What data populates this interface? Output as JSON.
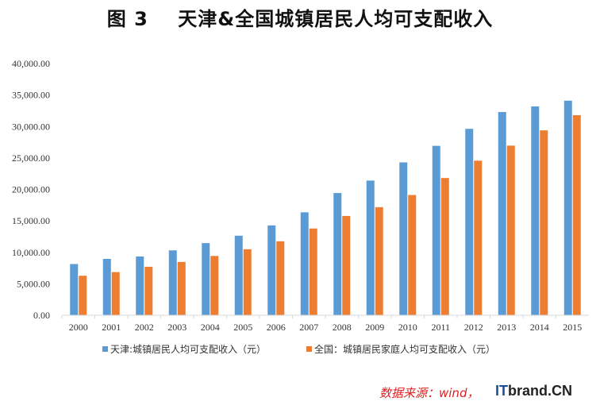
{
  "title": "图 3    天津&全国城镇居民人均可支配收入",
  "source_note": "数据来源：wind，",
  "watermark": {
    "prefix": "IT",
    "rest": "brand.CN"
  },
  "colors": {
    "series1": "#5b9bd5",
    "series2": "#ed7d31",
    "axis": "#d9d9d9",
    "text": "#333333"
  },
  "chart_data": {
    "type": "bar",
    "categories": [
      "2000",
      "2001",
      "2002",
      "2003",
      "2004",
      "2005",
      "2006",
      "2007",
      "2008",
      "2009",
      "2010",
      "2011",
      "2012",
      "2013",
      "2014",
      "2015"
    ],
    "series": [
      {
        "name": "天津:城镇居民人均可支配收入（元）",
        "values": [
          8141,
          8959,
          9338,
          10313,
          11467,
          12639,
          14283,
          16357,
          19423,
          21402,
          24293,
          26921,
          29626,
          32294,
          33185,
          34101
        ]
      },
      {
        "name": "全国：城镇居民家庭人均可支配收入（元）",
        "values": [
          6280,
          6860,
          7703,
          8472,
          9422,
          10493,
          11759,
          13786,
          15781,
          17175,
          19109,
          21810,
          24565,
          26955,
          29381,
          31790
        ]
      }
    ],
    "yticks": [
      "0.00",
      "5,000.00",
      "10,000.00",
      "15,000.00",
      "20,000.00",
      "25,000.00",
      "30,000.00",
      "35,000.00",
      "40,000.00"
    ],
    "ylim": [
      0,
      40000
    ],
    "grid": false,
    "legend_position": "bottom"
  }
}
